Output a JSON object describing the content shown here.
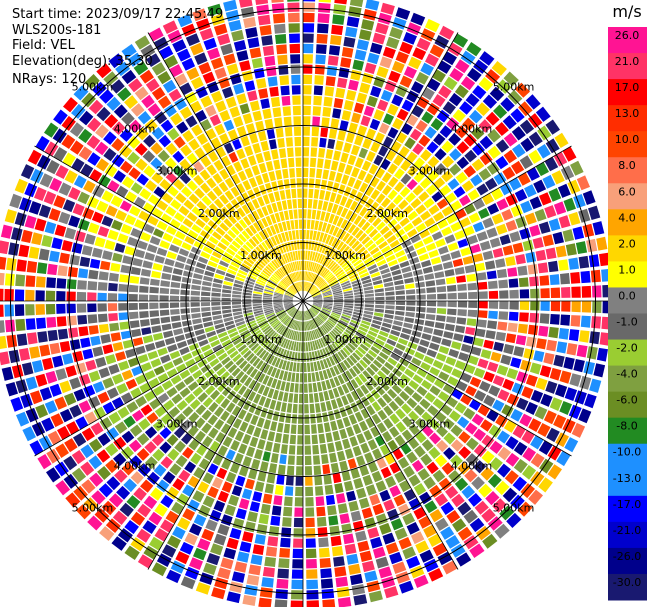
{
  "header": {
    "start_time": "Start time: 2023/09/17 22:45:49",
    "instrument": "WLS200s-181",
    "field": "Field: VEL",
    "elevation": "Elevation(deg): 35.30",
    "nrays": "NRays: 120"
  },
  "chart_data": {
    "type": "heatmap",
    "subtype": "ppi-radial-velocity",
    "n_rays": 120,
    "range_rings_km": [
      1.0,
      2.0,
      3.0,
      4.0,
      5.0
    ],
    "ring_labels": [
      "1.00km",
      "2.00km",
      "3.00km",
      "4.00km",
      "5.00km"
    ],
    "max_range_km": 5.3,
    "spoke_angles_deg": [
      0,
      30,
      60,
      90,
      120,
      150,
      180,
      210,
      240,
      270,
      300,
      330
    ],
    "colorbar": {
      "unit": "m/s",
      "ticks": [
        "26.0",
        "21.0",
        "17.0",
        "13.0",
        "10.0",
        "8.0",
        "6.0",
        "4.0",
        "2.0",
        "1.0",
        "0.0",
        "-1.0",
        "-2.0",
        "-4.0",
        "-6.0",
        "-8.0",
        "-10.0",
        "-13.0",
        "-17.0",
        "-21.0",
        "-26.0",
        "-30.0"
      ],
      "bins": [
        {
          "from": 26,
          "to": 30,
          "color": "#ff1493"
        },
        {
          "from": 21,
          "to": 26,
          "color": "#ff3366"
        },
        {
          "from": 17,
          "to": 21,
          "color": "#ff0000"
        },
        {
          "from": 13,
          "to": 17,
          "color": "#ff2d00"
        },
        {
          "from": 10,
          "to": 13,
          "color": "#ff4400"
        },
        {
          "from": 8,
          "to": 10,
          "color": "#ff6e4a"
        },
        {
          "from": 6,
          "to": 8,
          "color": "#f8a07a"
        },
        {
          "from": 4,
          "to": 6,
          "color": "#ffa500"
        },
        {
          "from": 2,
          "to": 4,
          "color": "#ffd700"
        },
        {
          "from": 1,
          "to": 2,
          "color": "#ffff00"
        },
        {
          "from": 0,
          "to": 1,
          "color": "#808080"
        },
        {
          "from": -1,
          "to": 0,
          "color": "#696969"
        },
        {
          "from": -2,
          "to": -1,
          "color": "#9acd32"
        },
        {
          "from": -4,
          "to": -2,
          "color": "#7fa040"
        },
        {
          "from": -6,
          "to": -4,
          "color": "#6b8e23"
        },
        {
          "from": -8,
          "to": -6,
          "color": "#228b22"
        },
        {
          "from": -10,
          "to": -8,
          "color": "#1e90ff"
        },
        {
          "from": -13,
          "to": -10,
          "color": "#1e90ff"
        },
        {
          "from": -17,
          "to": -13,
          "color": "#0000ff"
        },
        {
          "from": -21,
          "to": -17,
          "color": "#0000cd"
        },
        {
          "from": -26,
          "to": -21,
          "color": "#00008b"
        },
        {
          "from": -30,
          "to": -26,
          "color": "#191970"
        }
      ]
    }
  }
}
